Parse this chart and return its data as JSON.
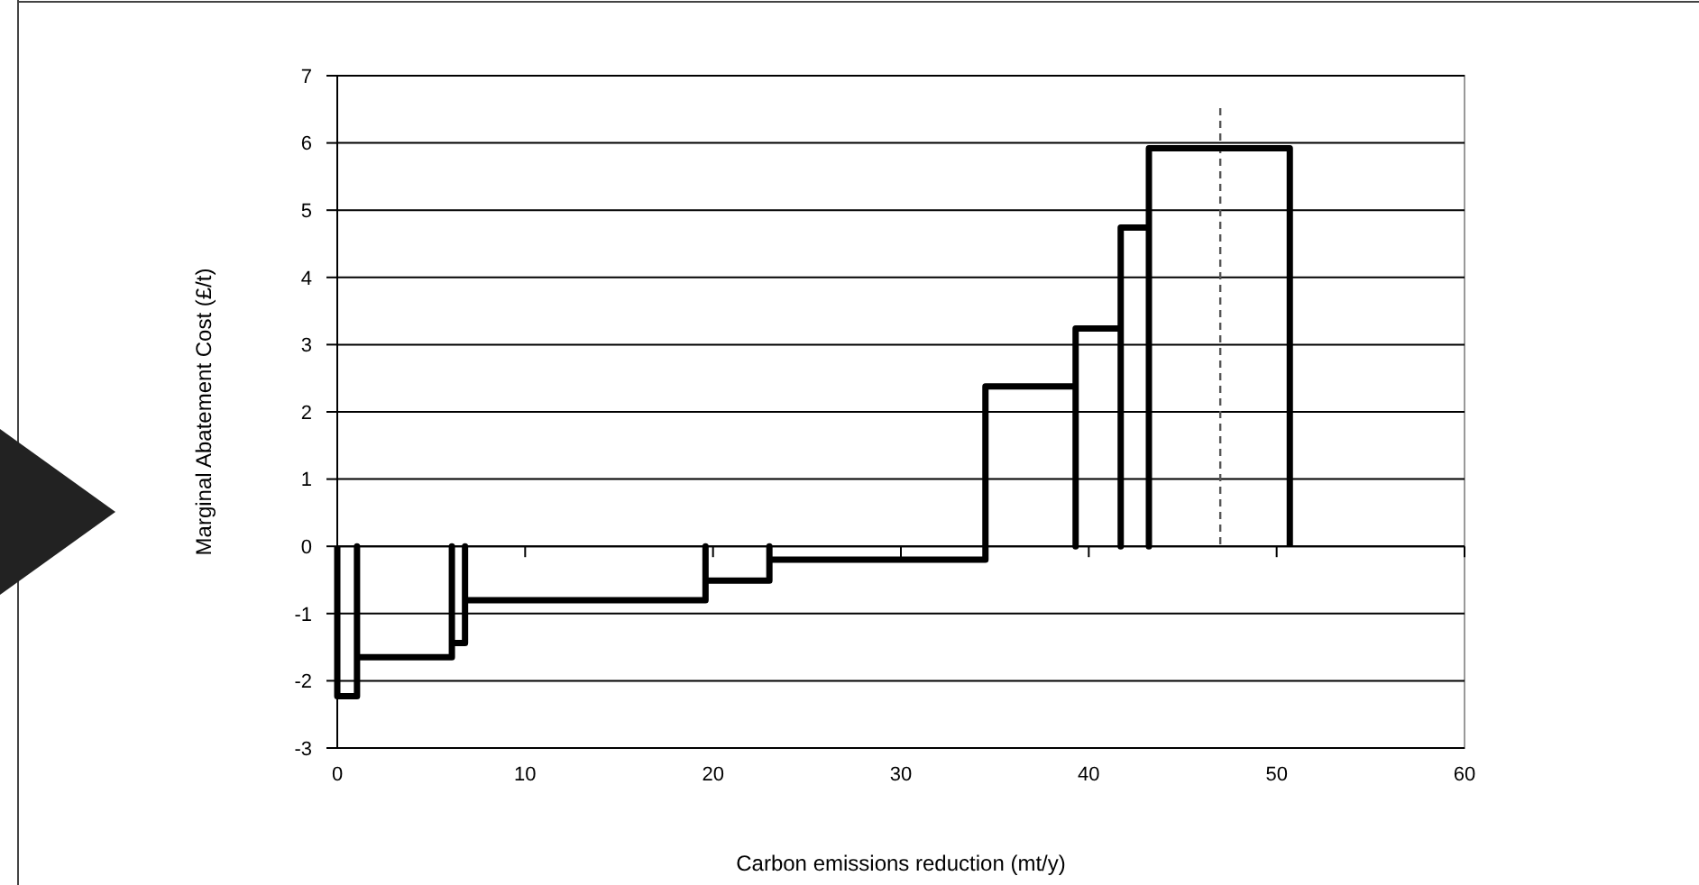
{
  "chart_data": {
    "type": "line",
    "xlabel": "Carbon emissions reduction (mt/y)",
    "ylabel": "Marginal Abatement Cost (£/t)",
    "x": [
      0,
      0,
      1.05,
      1.05,
      1.05,
      1.05,
      6.1,
      6.1,
      6.1,
      6.1,
      6.8,
      6.8,
      6.8,
      6.8,
      19.6,
      19.6,
      19.6,
      19.6,
      23.0,
      23.0,
      23.0,
      23.0,
      34.5,
      34.5,
      34.5,
      34.5,
      39.3,
      39.3,
      39.3,
      39.3,
      41.7,
      41.7,
      41.7,
      41.7,
      43.2,
      43.2,
      43.2,
      43.2,
      50.7,
      50.7
    ],
    "values": [
      0,
      -2.23,
      -2.23,
      0,
      0,
      -1.65,
      -1.65,
      0,
      0,
      -1.44,
      -1.44,
      0,
      0,
      -0.8,
      -0.8,
      0,
      0,
      -0.51,
      -0.51,
      0,
      0,
      -0.2,
      -0.2,
      0,
      0,
      2.38,
      2.38,
      0,
      0,
      3.24,
      3.24,
      0,
      0,
      4.74,
      4.74,
      0,
      0,
      5.92,
      5.92,
      0
    ],
    "color": "#000000",
    "xlim": [
      0,
      60
    ],
    "xticks": [
      0,
      10,
      20,
      30,
      40,
      50,
      60
    ],
    "ylim": [
      -3,
      7
    ],
    "yticks": [
      -3,
      -2,
      -1,
      0,
      1,
      2,
      3,
      4,
      5,
      6,
      7
    ],
    "grid": "y",
    "ref_lines": [
      {
        "axis": "x",
        "value": 47.0,
        "color": "#555555",
        "line_style": "dashed"
      }
    ]
  }
}
